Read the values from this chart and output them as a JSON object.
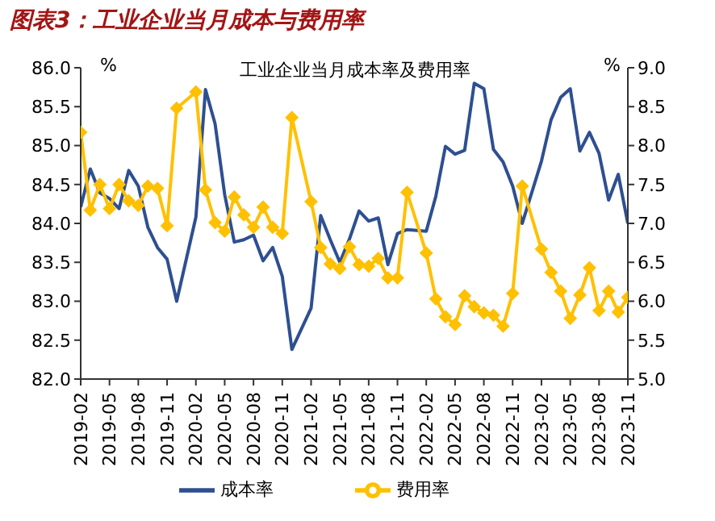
{
  "chart_data": {
    "type": "line",
    "title": "图表3：工业企业当月成本与费用率",
    "subtitle": "工业企业当月成本率及费用率",
    "ylabel": "%",
    "y2label": "%",
    "x": [
      "2019-02",
      "2019-03",
      "2019-04",
      "2019-05",
      "2019-06",
      "2019-07",
      "2019-08",
      "2019-09",
      "2019-10",
      "2019-11",
      "2019-12",
      "2020-02",
      "2020-03",
      "2020-04",
      "2020-05",
      "2020-06",
      "2020-07",
      "2020-08",
      "2020-09",
      "2020-10",
      "2020-11",
      "2020-12",
      "2021-02",
      "2021-03",
      "2021-04",
      "2021-05",
      "2021-06",
      "2021-07",
      "2021-08",
      "2021-09",
      "2021-10",
      "2021-11",
      "2021-12",
      "2022-02",
      "2022-03",
      "2022-04",
      "2022-05",
      "2022-06",
      "2022-07",
      "2022-08",
      "2022-09",
      "2022-10",
      "2022-11",
      "2022-12",
      "2023-02",
      "2023-03",
      "2023-04",
      "2023-05",
      "2023-06",
      "2023-07",
      "2023-08",
      "2023-09",
      "2023-10",
      "2023-11"
    ],
    "series": [
      {
        "name": "成本率",
        "color": "#2e4f91",
        "marker": "none",
        "values": [
          84.21,
          84.7,
          84.39,
          84.32,
          84.19,
          84.68,
          84.48,
          83.95,
          83.69,
          83.54,
          83.0,
          84.08,
          85.72,
          85.28,
          84.37,
          83.76,
          83.79,
          83.85,
          83.52,
          83.69,
          83.32,
          82.38,
          82.91,
          84.1,
          83.79,
          83.5,
          83.8,
          84.16,
          84.03,
          84.07,
          83.47,
          83.87,
          83.92,
          83.9,
          84.35,
          84.99,
          84.89,
          84.94,
          85.8,
          85.73,
          84.95,
          84.79,
          84.48,
          84.0,
          84.8,
          85.33,
          85.62,
          85.73,
          84.93,
          85.17,
          84.9,
          84.3,
          84.63,
          84.0
        ]
      },
      {
        "name": "费用率",
        "color": "#ffc000",
        "marker": "diamond",
        "axis": "y2",
        "values": [
          8.17,
          7.17,
          7.5,
          7.19,
          7.5,
          7.29,
          7.23,
          7.48,
          7.45,
          6.97,
          8.48,
          8.69,
          7.43,
          7.01,
          6.9,
          7.34,
          7.11,
          6.95,
          7.21,
          6.95,
          6.87,
          8.36,
          7.28,
          6.69,
          6.48,
          6.42,
          6.7,
          6.47,
          6.45,
          6.55,
          6.3,
          6.3,
          7.4,
          6.62,
          6.03,
          5.8,
          5.7,
          6.07,
          5.93,
          5.85,
          5.82,
          5.68,
          6.1,
          7.48,
          6.67,
          6.37,
          6.13,
          5.78,
          6.08,
          6.43,
          5.88,
          6.13,
          5.86,
          6.05
        ]
      }
    ],
    "xlim": [
      "2019-02",
      "2023-11"
    ],
    "xticks": [
      "2019-02",
      "2019-05",
      "2019-08",
      "2019-11",
      "2020-02",
      "2020-05",
      "2020-08",
      "2020-11",
      "2021-02",
      "2021-05",
      "2021-08",
      "2021-11",
      "2022-02",
      "2022-05",
      "2022-08",
      "2022-11",
      "2023-02",
      "2023-05",
      "2023-08",
      "2023-11"
    ],
    "ylim": [
      82,
      86
    ],
    "yticks": [
      {
        "value": 82,
        "label": "82.0"
      },
      {
        "value": 82.5,
        "label": "82.5"
      },
      {
        "value": 83,
        "label": "83.0"
      },
      {
        "value": 83.5,
        "label": "83.5"
      },
      {
        "value": 84,
        "label": "84.0"
      },
      {
        "value": 84.5,
        "label": "84.5"
      },
      {
        "value": 85,
        "label": "85.0"
      },
      {
        "value": 85.5,
        "label": "85.5"
      },
      {
        "value": 86,
        "label": "86.0"
      }
    ],
    "y2lim": [
      5,
      9
    ],
    "y2ticks": [
      {
        "value": 5,
        "label": "5.0"
      },
      {
        "value": 5.5,
        "label": "5.5"
      },
      {
        "value": 6,
        "label": "6.0"
      },
      {
        "value": 6.5,
        "label": "6.5"
      },
      {
        "value": 7,
        "label": "7.0"
      },
      {
        "value": 7.5,
        "label": "7.5"
      },
      {
        "value": 8,
        "label": "8.0"
      },
      {
        "value": 8.5,
        "label": "8.5"
      },
      {
        "value": 9,
        "label": "9.0"
      }
    ],
    "grid": false,
    "legend": "bottom",
    "line_style": "solid"
  }
}
